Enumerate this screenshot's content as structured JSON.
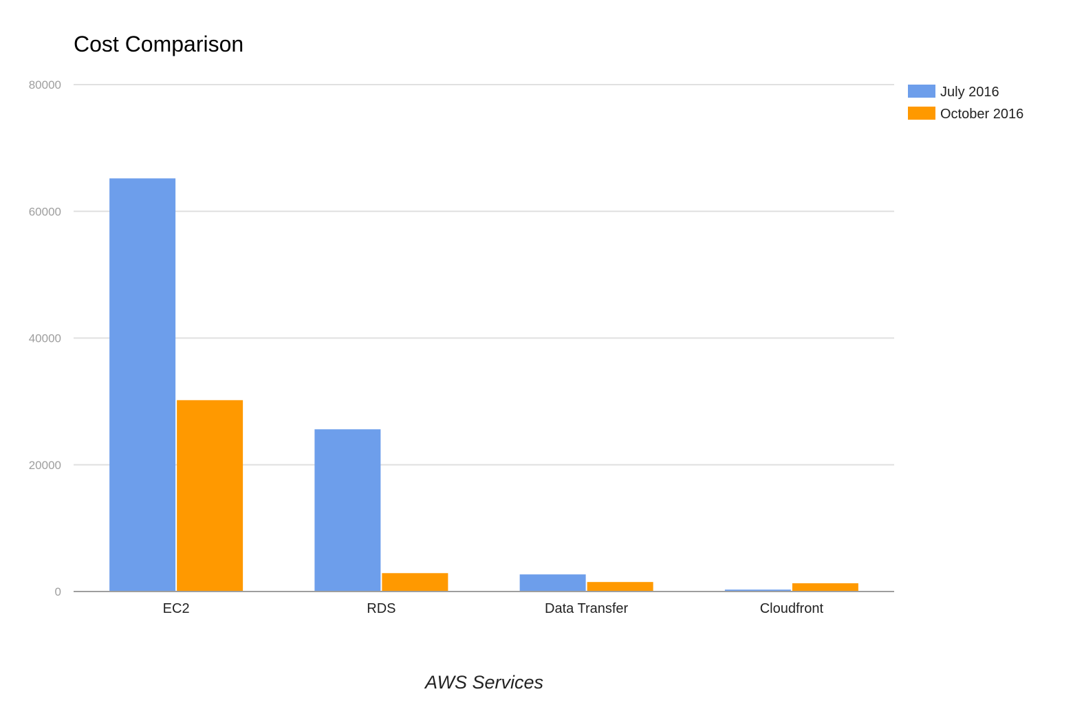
{
  "chart_data": {
    "type": "bar",
    "title": "Cost Comparison",
    "xlabel": "AWS Services",
    "ylabel": "",
    "categories": [
      "EC2",
      "RDS",
      "Data Transfer",
      "Cloudfront"
    ],
    "series": [
      {
        "name": "July 2016",
        "color": "#6d9eeb",
        "values": [
          65200,
          25600,
          2700,
          300
        ]
      },
      {
        "name": "October 2016",
        "color": "#ff9900",
        "values": [
          30200,
          2900,
          1500,
          1300
        ]
      }
    ],
    "ylim": [
      0,
      80000
    ],
    "yticks": [
      0,
      20000,
      40000,
      60000,
      80000
    ],
    "grid": true,
    "legend_position": "right"
  }
}
